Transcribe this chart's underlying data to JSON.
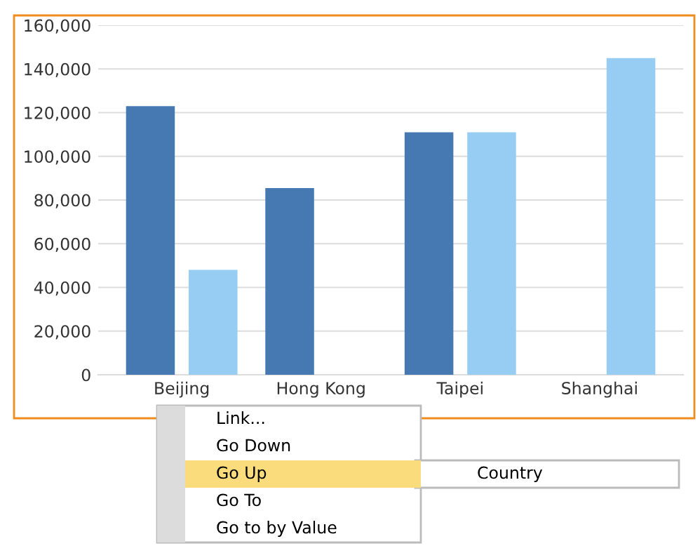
{
  "chart_data": {
    "type": "bar",
    "categories": [
      "Beijing",
      "Hong Kong",
      "Taipei",
      "Shanghai"
    ],
    "series": [
      {
        "color": "#4679b2",
        "values": [
          123000,
          85500,
          111000,
          null
        ]
      },
      {
        "color": "#97cdf3",
        "values": [
          48000,
          null,
          111000,
          145000
        ]
      }
    ],
    "ylim": [
      0,
      160000
    ],
    "yticks": [
      {
        "value": 0,
        "label": "0"
      },
      {
        "value": 20000,
        "label": "20,000"
      },
      {
        "value": 40000,
        "label": "40,000"
      },
      {
        "value": 60000,
        "label": "60,000"
      },
      {
        "value": 80000,
        "label": "80,000"
      },
      {
        "value": 100000,
        "label": "100,000"
      },
      {
        "value": 120000,
        "label": "120,000"
      },
      {
        "value": 140000,
        "label": "140,000"
      },
      {
        "value": 160000,
        "label": "160,000"
      }
    ],
    "grid": "y",
    "annotations": [
      "Link...",
      "Go Down",
      "Go Up",
      "Go To",
      "Go to by Value",
      "Country"
    ]
  }
}
